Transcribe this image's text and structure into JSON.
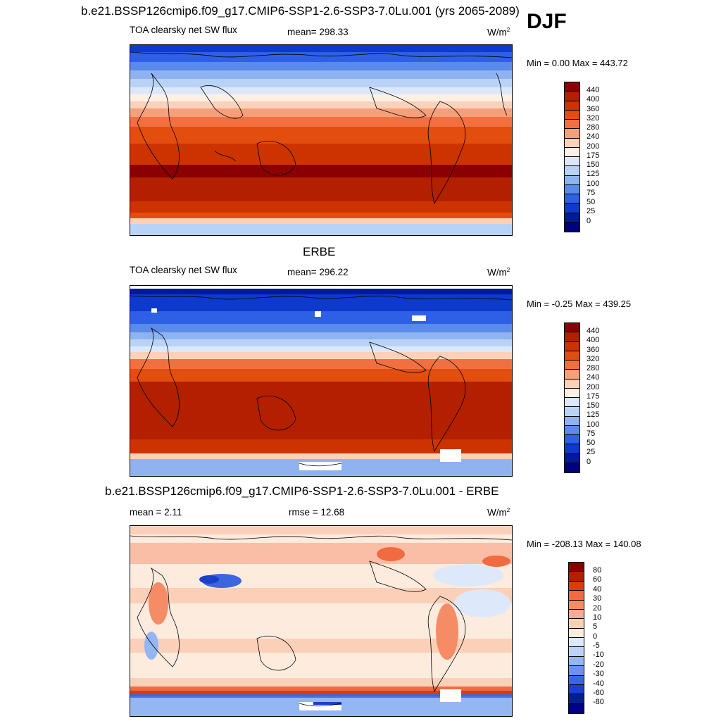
{
  "header": {
    "title": "b.e21.BSSP126cmip6.f09_g17.CMIP6-SSP1-2.6-SSP3-7.0Lu.001 (yrs 2065-2089)",
    "season": "DJF"
  },
  "panels": [
    {
      "title": "",
      "variable": "TOA clearsky net SW flux",
      "mean_text": "mean= 298.33",
      "units": "W/m",
      "units_sup": "2",
      "minmax": "Min =   0.00 Max = 443.72",
      "colorbar_labels": [
        "440",
        "400",
        "360",
        "320",
        "280",
        "240",
        "200",
        "175",
        "150",
        "125",
        "100",
        "75",
        "50",
        "25",
        "0"
      ]
    },
    {
      "title": "ERBE",
      "variable": "TOA clearsky net SW flux",
      "mean_text": "mean= 296.22",
      "units": "W/m",
      "units_sup": "2",
      "minmax": "Min =  -0.25 Max = 439.25",
      "colorbar_labels": [
        "440",
        "400",
        "360",
        "320",
        "280",
        "240",
        "200",
        "175",
        "150",
        "125",
        "100",
        "75",
        "50",
        "25",
        "0"
      ]
    },
    {
      "title": "b.e21.BSSP126cmip6.f09_g17.CMIP6-SSP1-2.6-SSP3-7.0Lu.001 - ERBE",
      "mean_text": "mean =   2.11",
      "rmse_text": "rmse =  12.68",
      "units": "W/m",
      "units_sup": "2",
      "minmax": "Min = -208.13 Max = 140.08",
      "colorbar_labels": [
        "80",
        "60",
        "40",
        "30",
        "20",
        "10",
        "5",
        "0",
        "-5",
        "-10",
        "-20",
        "-30",
        "-40",
        "-60",
        "-80"
      ]
    }
  ],
  "colors": {
    "field_scale": [
      "#8b0000",
      "#b22000",
      "#cc3300",
      "#e34d0d",
      "#f27040",
      "#f5a07a",
      "#fad2bc",
      "#fff0e6",
      "#dce8fa",
      "#b9d3f7",
      "#8fb3f0",
      "#5a8aeb",
      "#2e60e6",
      "#0d3acc",
      "#001a99",
      "#000080"
    ],
    "diff_scale": [
      "#8b0000",
      "#b81c00",
      "#d93d0a",
      "#f26a40",
      "#f58c66",
      "#f7ad8f",
      "#fad0b9",
      "#fdebde",
      "#dde9fa",
      "#bcd3f7",
      "#94b6f2",
      "#6b93ed",
      "#3a66e0",
      "#1a3fcc",
      "#00208f",
      "#000080"
    ]
  }
}
